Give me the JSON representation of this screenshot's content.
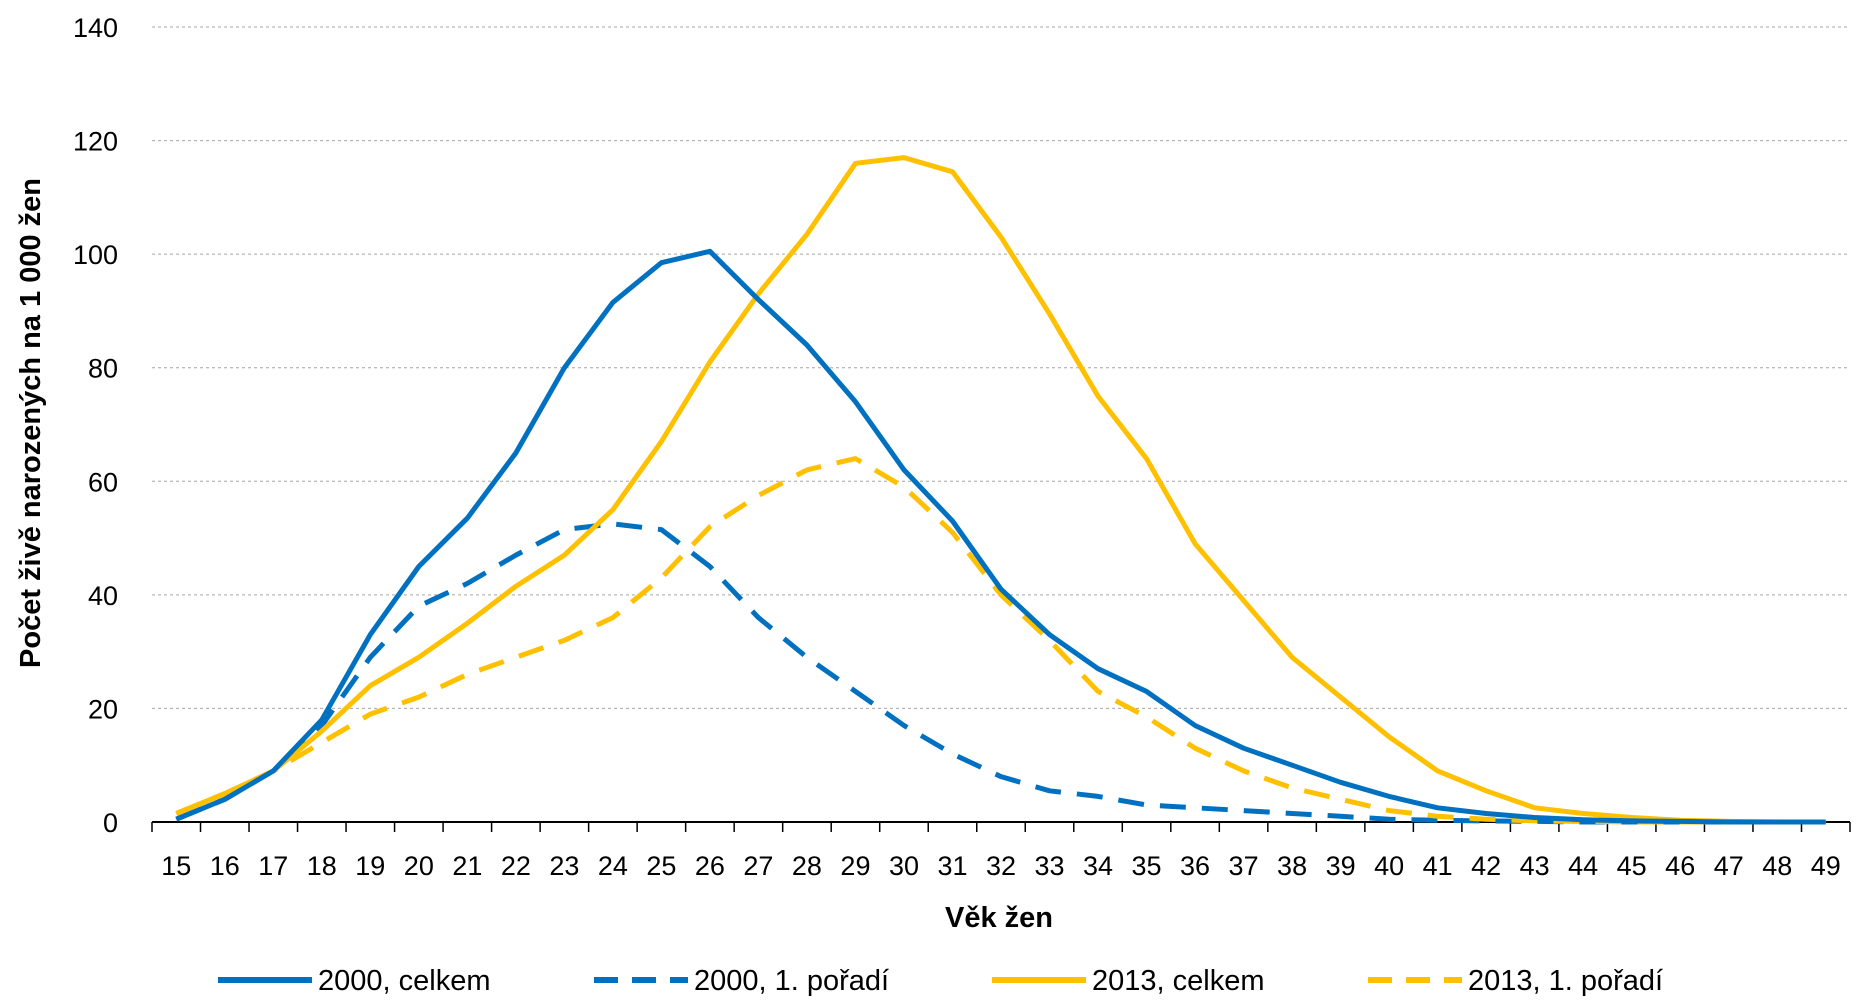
{
  "chart_data": {
    "type": "line",
    "xlabel": "Věk žen",
    "ylabel": "Počet živě narozených na 1 000 žen",
    "ylim": [
      0,
      140
    ],
    "yticks": [
      0,
      20,
      40,
      60,
      80,
      100,
      120,
      140
    ],
    "x": [
      15,
      16,
      17,
      18,
      19,
      20,
      21,
      22,
      23,
      24,
      25,
      26,
      27,
      28,
      29,
      30,
      31,
      32,
      33,
      34,
      35,
      36,
      37,
      38,
      39,
      40,
      41,
      42,
      43,
      44,
      45,
      46,
      47,
      48,
      49
    ],
    "grid": true,
    "legend_position": "bottom",
    "series": [
      {
        "name": "2000, celkem",
        "color": "#0070C0",
        "dash": "solid",
        "values": [
          0.5,
          4,
          9,
          18,
          33,
          45,
          53.5,
          65,
          80,
          91.5,
          98.5,
          100.5,
          92,
          84,
          74,
          62,
          53,
          41,
          33,
          27,
          23,
          17,
          13,
          10,
          7,
          4.5,
          2.5,
          1.5,
          0.8,
          0.4,
          0.2,
          0.1,
          0,
          0,
          0
        ]
      },
      {
        "name": "2000, 1. pořadí",
        "color": "#0070C0",
        "dash": "dashed",
        "values": [
          0.5,
          4,
          9,
          17,
          29,
          38,
          42,
          47,
          51.5,
          52.5,
          51.5,
          45,
          36,
          29,
          23,
          17,
          12,
          8,
          5.5,
          4.5,
          3,
          2.5,
          2,
          1.5,
          1,
          0.5,
          0.3,
          0.2,
          0.1,
          0,
          0,
          0,
          0,
          0,
          0
        ]
      },
      {
        "name": "2013, celkem",
        "color": "#FFC000",
        "dash": "solid",
        "values": [
          1.5,
          5,
          9,
          16,
          24,
          29,
          35,
          41.5,
          47,
          55,
          67,
          81,
          93,
          103.5,
          116,
          117,
          114.5,
          103,
          89.5,
          75,
          64,
          49,
          39,
          29,
          22,
          15,
          9,
          5.5,
          2.5,
          1.5,
          0.8,
          0.3,
          0.1,
          0,
          0
        ]
      },
      {
        "name": "2013, 1. pořadí",
        "color": "#FFC000",
        "dash": "dashed",
        "values": [
          1.5,
          5,
          9,
          14,
          19,
          22,
          26,
          29,
          32,
          36,
          43,
          52,
          57.5,
          62,
          64,
          59,
          51,
          40,
          32,
          23,
          18.5,
          13,
          9,
          6,
          4,
          2,
          1,
          0.5,
          0.2,
          0.1,
          0,
          0,
          0,
          0,
          0
        ]
      }
    ]
  }
}
